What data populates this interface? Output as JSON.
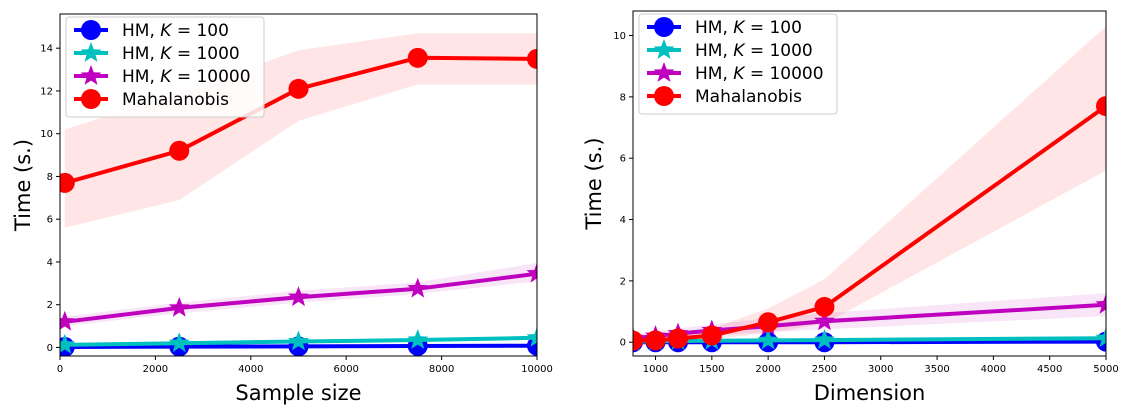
{
  "chart_data": [
    {
      "type": "line",
      "xlabel": "Sample size",
      "ylabel": "Time (s.)",
      "xlim": [
        0,
        10000
      ],
      "ylim": [
        -0.4,
        15.6
      ],
      "xticks": [
        0,
        2000,
        4000,
        6000,
        8000,
        10000
      ],
      "yticks": [
        0,
        2,
        4,
        6,
        8,
        10,
        12,
        14
      ],
      "legend_position": "upper-left",
      "x": [
        100,
        2500,
        5000,
        7500,
        10000
      ],
      "series": [
        {
          "name": "HM, K = 100",
          "legend_prefix": "HM, ",
          "legend_var": "K",
          "legend_suffix": " = 100",
          "color": "#0000ff",
          "marker": "circle",
          "values": [
            0.02,
            0.04,
            0.05,
            0.07,
            0.08
          ]
        },
        {
          "name": "HM, K = 1000",
          "legend_prefix": "HM, ",
          "legend_var": "K",
          "legend_suffix": " = 1000",
          "color": "#00bfbf",
          "marker": "star",
          "values": [
            0.12,
            0.2,
            0.28,
            0.35,
            0.45
          ]
        },
        {
          "name": "HM, K = 10000",
          "legend_prefix": "HM, ",
          "legend_var": "K",
          "legend_suffix": " = 10000",
          "color": "#bf00bf",
          "marker": "star",
          "values": [
            1.2,
            1.85,
            2.35,
            2.75,
            3.45
          ],
          "band_low": [
            1.0,
            1.6,
            2.1,
            2.5,
            3.1
          ],
          "band_high": [
            1.45,
            2.1,
            2.65,
            3.05,
            3.95
          ]
        },
        {
          "name": "Mahalanobis",
          "legend_prefix": "Mahalanobis",
          "legend_var": "",
          "legend_suffix": "",
          "color": "#ff0000",
          "marker": "circle",
          "values": [
            7.7,
            9.2,
            12.1,
            13.55,
            13.5
          ],
          "band_low": [
            5.6,
            6.9,
            10.6,
            12.3,
            12.3
          ],
          "band_high": [
            10.2,
            11.9,
            13.9,
            14.7,
            14.7
          ]
        }
      ]
    },
    {
      "type": "line",
      "xlabel": "Dimension",
      "ylabel": "Time (s.)",
      "xlim": [
        800,
        5000
      ],
      "ylim": [
        -0.45,
        10.8
      ],
      "xticks": [
        1000,
        1500,
        2000,
        2500,
        3000,
        3500,
        4000,
        4500,
        5000
      ],
      "yticks": [
        0,
        2,
        4,
        6,
        8,
        10
      ],
      "legend_position": "upper-left",
      "x": [
        800,
        1000,
        1200,
        1500,
        2000,
        2500,
        5000
      ],
      "series": [
        {
          "name": "HM, K = 100",
          "legend_prefix": "HM, ",
          "legend_var": "K",
          "legend_suffix": " = 100",
          "color": "#0000ff",
          "marker": "circle",
          "values": [
            0.0,
            0.0,
            0.0,
            0.0,
            0.0,
            0.0,
            0.02
          ]
        },
        {
          "name": "HM, K = 1000",
          "legend_prefix": "HM, ",
          "legend_var": "K",
          "legend_suffix": " = 1000",
          "color": "#00bfbf",
          "marker": "star",
          "values": [
            0.02,
            0.03,
            0.04,
            0.05,
            0.06,
            0.07,
            0.13
          ]
        },
        {
          "name": "HM, K = 10000",
          "legend_prefix": "HM, ",
          "legend_var": "K",
          "legend_suffix": " = 10000",
          "color": "#bf00bf",
          "marker": "star",
          "values": [
            0.13,
            0.2,
            0.28,
            0.38,
            0.52,
            0.68,
            1.22
          ],
          "band_low": [
            0.05,
            0.1,
            0.15,
            0.22,
            0.32,
            0.42,
            0.85
          ],
          "band_high": [
            0.25,
            0.35,
            0.45,
            0.58,
            0.78,
            0.95,
            1.6
          ]
        },
        {
          "name": "Mahalanobis",
          "legend_prefix": "Mahalanobis",
          "legend_var": "",
          "legend_suffix": "",
          "color": "#ff0000",
          "marker": "circle",
          "values": [
            0.05,
            0.06,
            0.12,
            0.22,
            0.65,
            1.15,
            7.7
          ],
          "band_low": [
            0.0,
            0.0,
            0.05,
            0.1,
            0.3,
            0.6,
            5.6
          ],
          "band_high": [
            0.15,
            0.2,
            0.3,
            0.45,
            1.1,
            2.05,
            10.3
          ]
        }
      ]
    }
  ]
}
